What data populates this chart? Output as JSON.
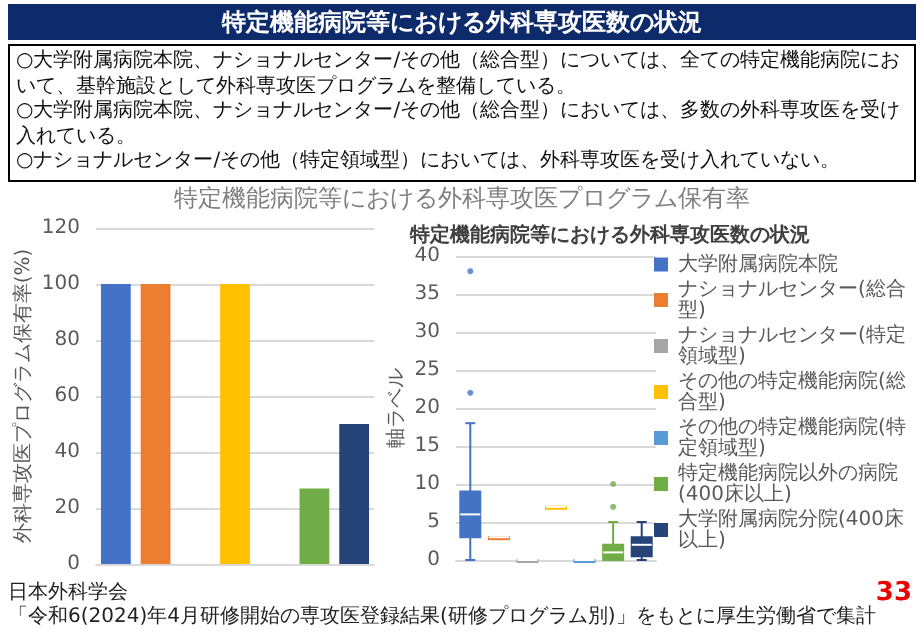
{
  "chart_data": [
    {
      "type": "other",
      "title": "特定機能病院等における外科専攻医数の状況",
      "annotations": [
        "○大学附属病院本院、ナショナルセンター/その他（総合型）については、全ての特定機能病院において、基幹施設として外科専攻医プログラムを整備している。",
        "○大学附属病院本院、ナショナルセンター/その他（総合型）においては、多数の外科専攻医を受け入れている。",
        "○ナショナルセンター/その他（特定領域型）においては、外科専攻医を受け入れていない。"
      ]
    },
    {
      "type": "bar",
      "title": "特定機能病院等における外科専攻医プログラム保有率",
      "ylabel": "外科専攻医プログラム保有率(%)",
      "categories": [
        null,
        null,
        null,
        null,
        null,
        null,
        null
      ],
      "values": [
        100,
        100,
        0,
        100,
        0,
        27,
        50
      ],
      "colors": [
        "#4472c4",
        "#ed7d31",
        "#a5a5a5",
        "#ffc000",
        "#5b9bd5",
        "#70ad47",
        "#264478"
      ],
      "ylim": [
        0,
        120
      ],
      "yticks": [
        0,
        20,
        40,
        60,
        80,
        100,
        120
      ],
      "grid": "y",
      "tick_labels": "y"
    },
    {
      "type": "box",
      "title": "特定機能病院等における外科専攻医数の状況",
      "ylabel": "軸ラベル",
      "categories": [
        null,
        null,
        null,
        null,
        null,
        null,
        null
      ],
      "series": [
        {
          "name": "大学附属病院本院",
          "color": "#4472c4",
          "boxes": [
            {
              "low": 0,
              "q1": 3,
              "median": 6,
              "q3": 9,
              "high": 18,
              "outliers": [
                22,
                38
              ]
            },
            null,
            null,
            null,
            null,
            null,
            null
          ]
        },
        {
          "name": "ナショナルセンター(総合型)",
          "color": "#ed7d31",
          "boxes": [
            null,
            {
              "low": 3,
              "q1": 3,
              "median": 3,
              "q3": 3,
              "high": 3
            },
            null,
            null,
            null,
            null,
            null
          ]
        },
        {
          "name": "ナショナルセンター(特定領域型)",
          "color": "#a5a5a5",
          "boxes": [
            null,
            null,
            {
              "low": 0,
              "q1": 0,
              "median": 0,
              "q3": 0,
              "high": 0
            },
            null,
            null,
            null,
            null
          ]
        },
        {
          "name": "その他の特定機能病院(総合型)",
          "color": "#ffc000",
          "boxes": [
            null,
            null,
            null,
            {
              "low": 7,
              "q1": 7,
              "median": 7,
              "q3": 7,
              "high": 7
            },
            null,
            null,
            null
          ]
        },
        {
          "name": "その他の特定機能病院(特定領域型)",
          "color": "#5b9bd5",
          "boxes": [
            null,
            null,
            null,
            null,
            {
              "low": 0,
              "q1": 0,
              "median": 0,
              "q3": 0,
              "high": 0
            },
            null,
            null
          ]
        },
        {
          "name": "特定機能病院以外の病院(400床以上)",
          "color": "#70ad47",
          "boxes": [
            null,
            null,
            null,
            null,
            null,
            {
              "low": 0,
              "q1": 0,
              "median": 1,
              "q3": 2,
              "high": 5,
              "outliers": [
                7,
                10
              ]
            },
            null
          ]
        },
        {
          "name": "大学附属病院分院(400床以上)",
          "color": "#264478",
          "boxes": [
            null,
            null,
            null,
            null,
            null,
            null,
            {
              "low": 0,
              "q1": 0.5,
              "median": 2,
              "q3": 3,
              "high": 5
            }
          ]
        }
      ],
      "ylim": [
        0,
        40
      ],
      "yticks": [
        0,
        5,
        10,
        15,
        20,
        25,
        30,
        35,
        40
      ],
      "grid": "y",
      "legend": "right",
      "tick_labels": "y"
    },
    {
      "type": "other",
      "annotations": [
        "日本外科学会",
        "「令和6(2024)年4月研修開始の専攻医登録結果(研修プログラム別)」をもとに厚生労働省で集計",
        "33"
      ]
    }
  ]
}
